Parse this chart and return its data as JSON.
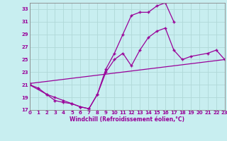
{
  "background_color": "#c8eef0",
  "line_color": "#990099",
  "grid_color": "#aacccc",
  "xlabel": "Windchill (Refroidissement éolien,°C)",
  "xlim": [
    0,
    23
  ],
  "ylim": [
    17,
    34
  ],
  "yticks": [
    17,
    19,
    21,
    23,
    25,
    27,
    29,
    31,
    33
  ],
  "xticks": [
    0,
    1,
    2,
    3,
    4,
    5,
    6,
    7,
    8,
    9,
    10,
    11,
    12,
    13,
    14,
    15,
    16,
    17,
    18,
    19,
    20,
    21,
    22,
    23
  ],
  "line1_x": [
    0,
    1,
    2,
    3,
    4,
    5,
    6,
    7,
    8,
    9,
    10,
    11,
    12,
    13,
    14,
    15,
    16,
    17
  ],
  "line1_y": [
    21.0,
    20.5,
    19.5,
    19.0,
    18.5,
    18.0,
    17.5,
    17.2,
    19.5,
    23.5,
    26.0,
    29.0,
    32.0,
    32.5,
    32.5,
    33.5,
    34.0,
    31.0
  ],
  "line2_x": [
    0,
    2,
    3,
    4,
    5,
    6,
    7,
    8,
    9,
    10,
    11,
    12,
    13,
    14,
    15,
    16,
    17,
    18,
    19,
    21,
    22,
    23
  ],
  "line2_y": [
    21.0,
    19.5,
    18.5,
    18.2,
    18.0,
    17.5,
    17.2,
    19.5,
    23.0,
    25.0,
    26.0,
    24.0,
    26.5,
    28.5,
    29.5,
    30.0,
    26.5,
    25.0,
    25.5,
    26.0,
    26.5,
    25.0
  ],
  "line3_x": [
    0,
    23
  ],
  "line3_y": [
    21.2,
    25.0
  ]
}
